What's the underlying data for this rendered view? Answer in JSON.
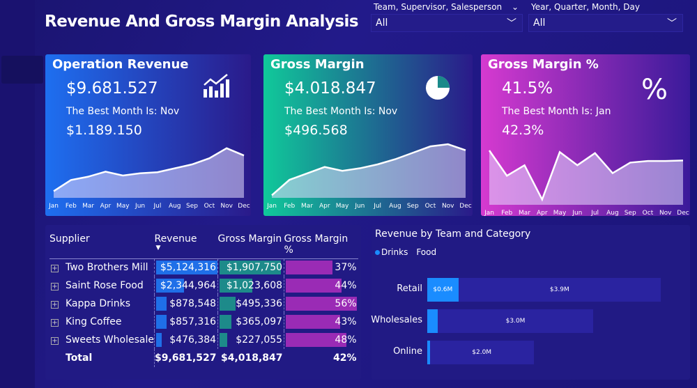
{
  "title": "Revenue And Gross Margin Analysis",
  "slicers": [
    {
      "label": "Team, Supervisor, Salesperson",
      "value": "All"
    },
    {
      "label": "Year, Quarter, Month, Day",
      "value": "All"
    }
  ],
  "months": [
    "Jan",
    "Feb",
    "Mar",
    "Apr",
    "May",
    "Jun",
    "Jul",
    "Aug",
    "Sep",
    "Oct",
    "Nov",
    "Dec"
  ],
  "cards": [
    {
      "title": "Operation Revenue",
      "value": "$9.681.527",
      "best_label": "The Best Month Is: Nov",
      "best_value": "$1.189.150",
      "icon": "chart-growth-icon",
      "colors": [
        "#1e6ff0",
        "#2a1a8a"
      ],
      "series": [
        0.42,
        0.62,
        0.68,
        0.77,
        0.7,
        0.74,
        0.76,
        0.83,
        0.9,
        1.01,
        1.19,
        1.06
      ],
      "ylim": [
        0.3,
        1.5
      ]
    },
    {
      "title": "Gross Margin",
      "value": "$4.018.847",
      "best_label": "The Best Month Is: Nov",
      "best_value": "$496.568",
      "icon": "pie-chart-icon",
      "colors": [
        "#10c99a",
        "#2a1a8a"
      ],
      "series": [
        0.1,
        0.22,
        0.27,
        0.32,
        0.29,
        0.31,
        0.34,
        0.38,
        0.43,
        0.48,
        0.497,
        0.45
      ],
      "ylim": [
        0.08,
        0.6
      ]
    },
    {
      "title": "Gross Margin %",
      "value": "41.5%",
      "best_label": "The Best Month Is: Jan",
      "best_value": "42.3%",
      "icon": "percent-icon",
      "colors": [
        "#d63ad0",
        "#3a1a9a"
      ],
      "series": [
        42.3,
        37.5,
        39.5,
        33.0,
        42.0,
        39.5,
        41.8,
        38.0,
        40.0,
        40.3,
        40.3,
        40.4
      ],
      "ylim": [
        32,
        46
      ]
    }
  ],
  "table": {
    "headers": [
      "Supplier",
      "Revenue",
      "Gross Margin",
      "Gross Margin %"
    ],
    "rows": [
      {
        "supplier": "Two Brothers Mill",
        "revenue": "$5,124,316",
        "rev": 5124316,
        "gm": "$1,907,750",
        "gmv": 1907750,
        "pct": "37%",
        "p": 37
      },
      {
        "supplier": "Saint Rose Food",
        "revenue": "$2,344,964",
        "rev": 2344964,
        "gm": "$1,023,608",
        "gmv": 1023608,
        "pct": "44%",
        "p": 44
      },
      {
        "supplier": "Kappa Drinks",
        "revenue": "$878,548",
        "rev": 878548,
        "gm": "$495,336",
        "gmv": 495336,
        "pct": "56%",
        "p": 56
      },
      {
        "supplier": "King Coffee",
        "revenue": "$857,316",
        "rev": 857316,
        "gm": "$365,097",
        "gmv": 365097,
        "pct": "43%",
        "p": 43
      },
      {
        "supplier": "Sweets Wholesale",
        "revenue": "$476,384",
        "rev": 476384,
        "gm": "$227,055",
        "gmv": 227055,
        "pct": "48%",
        "p": 48
      }
    ],
    "total": {
      "label": "Total",
      "revenue": "$9,681,527",
      "gm": "$4,018,847",
      "pct": "42%"
    },
    "colors": {
      "revenue": "#1f6fe8",
      "gm": "#1d8a8a",
      "pct": "#9a2bb5"
    }
  },
  "chart_data": {
    "type": "bar",
    "title": "Revenue by Team and Category",
    "categories": [
      "Retail",
      "Wholesales",
      "Online"
    ],
    "series": [
      {
        "name": "Drinks",
        "values": [
          0.6,
          0.2,
          0.05
        ],
        "labels": [
          "$0.6M",
          "",
          ""
        ],
        "color": "#1a8cff"
      },
      {
        "name": "Food",
        "values": [
          3.9,
          3.0,
          2.0
        ],
        "labels": [
          "$3.9M",
          "$3.0M",
          "$2.0M"
        ],
        "color": "#2a23a0"
      }
    ],
    "unit": "$M",
    "stacked": true,
    "orientation": "horizontal",
    "legend": "top-left"
  }
}
